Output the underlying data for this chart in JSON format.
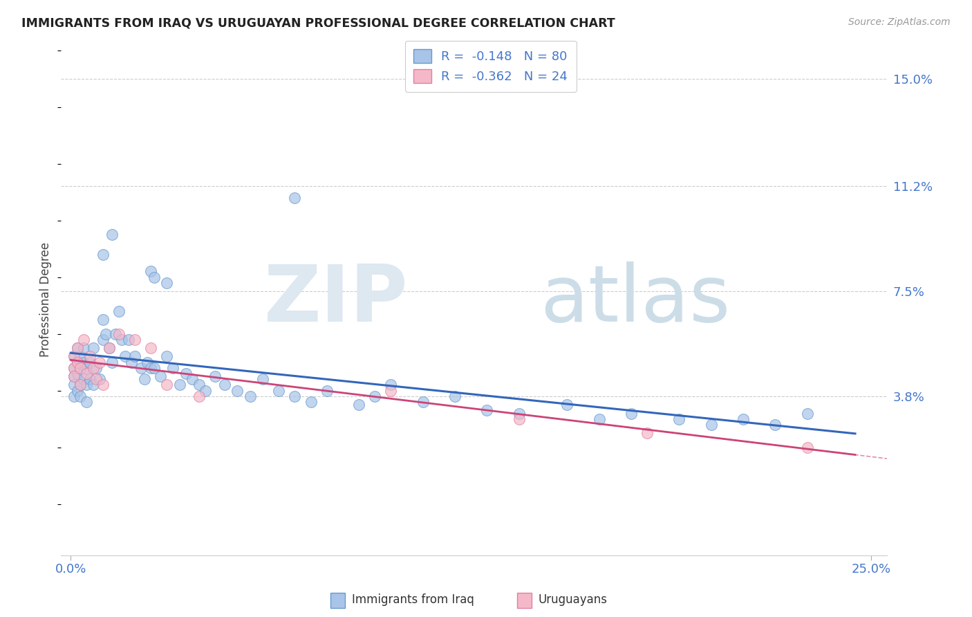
{
  "title": "IMMIGRANTS FROM IRAQ VS URUGUAYAN PROFESSIONAL DEGREE CORRELATION CHART",
  "source": "Source: ZipAtlas.com",
  "ylabel": "Professional Degree",
  "xlim": [
    -0.003,
    0.255
  ],
  "ylim": [
    -0.018,
    0.162
  ],
  "yticks": [
    0.038,
    0.075,
    0.112,
    0.15
  ],
  "ytick_labels": [
    "3.8%",
    "7.5%",
    "11.2%",
    "15.0%"
  ],
  "xticks": [
    0.0,
    0.25
  ],
  "xtick_labels": [
    "0.0%",
    "25.0%"
  ],
  "blue_scatter_color": "#a8c4e8",
  "blue_edge_color": "#6699cc",
  "pink_scatter_color": "#f5b8c8",
  "pink_edge_color": "#e080a0",
  "line_blue_color": "#3366bb",
  "line_pink_color": "#cc4477",
  "grid_color": "#cccccc",
  "watermark_zip_color": "#dde8f0",
  "watermark_atlas_color": "#ccdde8",
  "legend_R_color": "#4477cc",
  "legend_N_color": "#4477cc",
  "blue_R": -0.148,
  "blue_N": 80,
  "pink_R": -0.362,
  "pink_N": 24,
  "iraq_x": [
    0.001,
    0.001,
    0.001,
    0.001,
    0.001,
    0.002,
    0.002,
    0.002,
    0.002,
    0.003,
    0.003,
    0.003,
    0.003,
    0.004,
    0.004,
    0.004,
    0.005,
    0.005,
    0.005,
    0.006,
    0.006,
    0.007,
    0.007,
    0.008,
    0.009,
    0.01,
    0.01,
    0.011,
    0.012,
    0.013,
    0.014,
    0.015,
    0.016,
    0.017,
    0.018,
    0.019,
    0.02,
    0.022,
    0.023,
    0.024,
    0.025,
    0.026,
    0.028,
    0.03,
    0.032,
    0.034,
    0.036,
    0.038,
    0.04,
    0.042,
    0.045,
    0.048,
    0.052,
    0.056,
    0.06,
    0.065,
    0.07,
    0.075,
    0.08,
    0.09,
    0.095,
    0.1,
    0.11,
    0.12,
    0.13,
    0.14,
    0.155,
    0.165,
    0.175,
    0.19,
    0.2,
    0.21,
    0.22,
    0.23,
    0.025,
    0.03,
    0.026,
    0.07,
    0.013,
    0.01
  ],
  "iraq_y": [
    0.048,
    0.052,
    0.045,
    0.042,
    0.038,
    0.05,
    0.055,
    0.046,
    0.04,
    0.052,
    0.048,
    0.042,
    0.038,
    0.05,
    0.055,
    0.044,
    0.048,
    0.042,
    0.036,
    0.05,
    0.044,
    0.055,
    0.042,
    0.048,
    0.044,
    0.065,
    0.058,
    0.06,
    0.055,
    0.05,
    0.06,
    0.068,
    0.058,
    0.052,
    0.058,
    0.05,
    0.052,
    0.048,
    0.044,
    0.05,
    0.048,
    0.048,
    0.045,
    0.052,
    0.048,
    0.042,
    0.046,
    0.044,
    0.042,
    0.04,
    0.045,
    0.042,
    0.04,
    0.038,
    0.044,
    0.04,
    0.038,
    0.036,
    0.04,
    0.035,
    0.038,
    0.042,
    0.036,
    0.038,
    0.033,
    0.032,
    0.035,
    0.03,
    0.032,
    0.03,
    0.028,
    0.03,
    0.028,
    0.032,
    0.082,
    0.078,
    0.08,
    0.108,
    0.095,
    0.088
  ],
  "uru_x": [
    0.001,
    0.001,
    0.001,
    0.002,
    0.002,
    0.003,
    0.003,
    0.004,
    0.005,
    0.006,
    0.007,
    0.008,
    0.009,
    0.01,
    0.012,
    0.015,
    0.02,
    0.025,
    0.03,
    0.04,
    0.1,
    0.14,
    0.18,
    0.23
  ],
  "uru_y": [
    0.052,
    0.048,
    0.045,
    0.055,
    0.05,
    0.048,
    0.042,
    0.058,
    0.046,
    0.052,
    0.048,
    0.044,
    0.05,
    0.042,
    0.055,
    0.06,
    0.058,
    0.055,
    0.042,
    0.038,
    0.04,
    0.03,
    0.025,
    0.02
  ]
}
